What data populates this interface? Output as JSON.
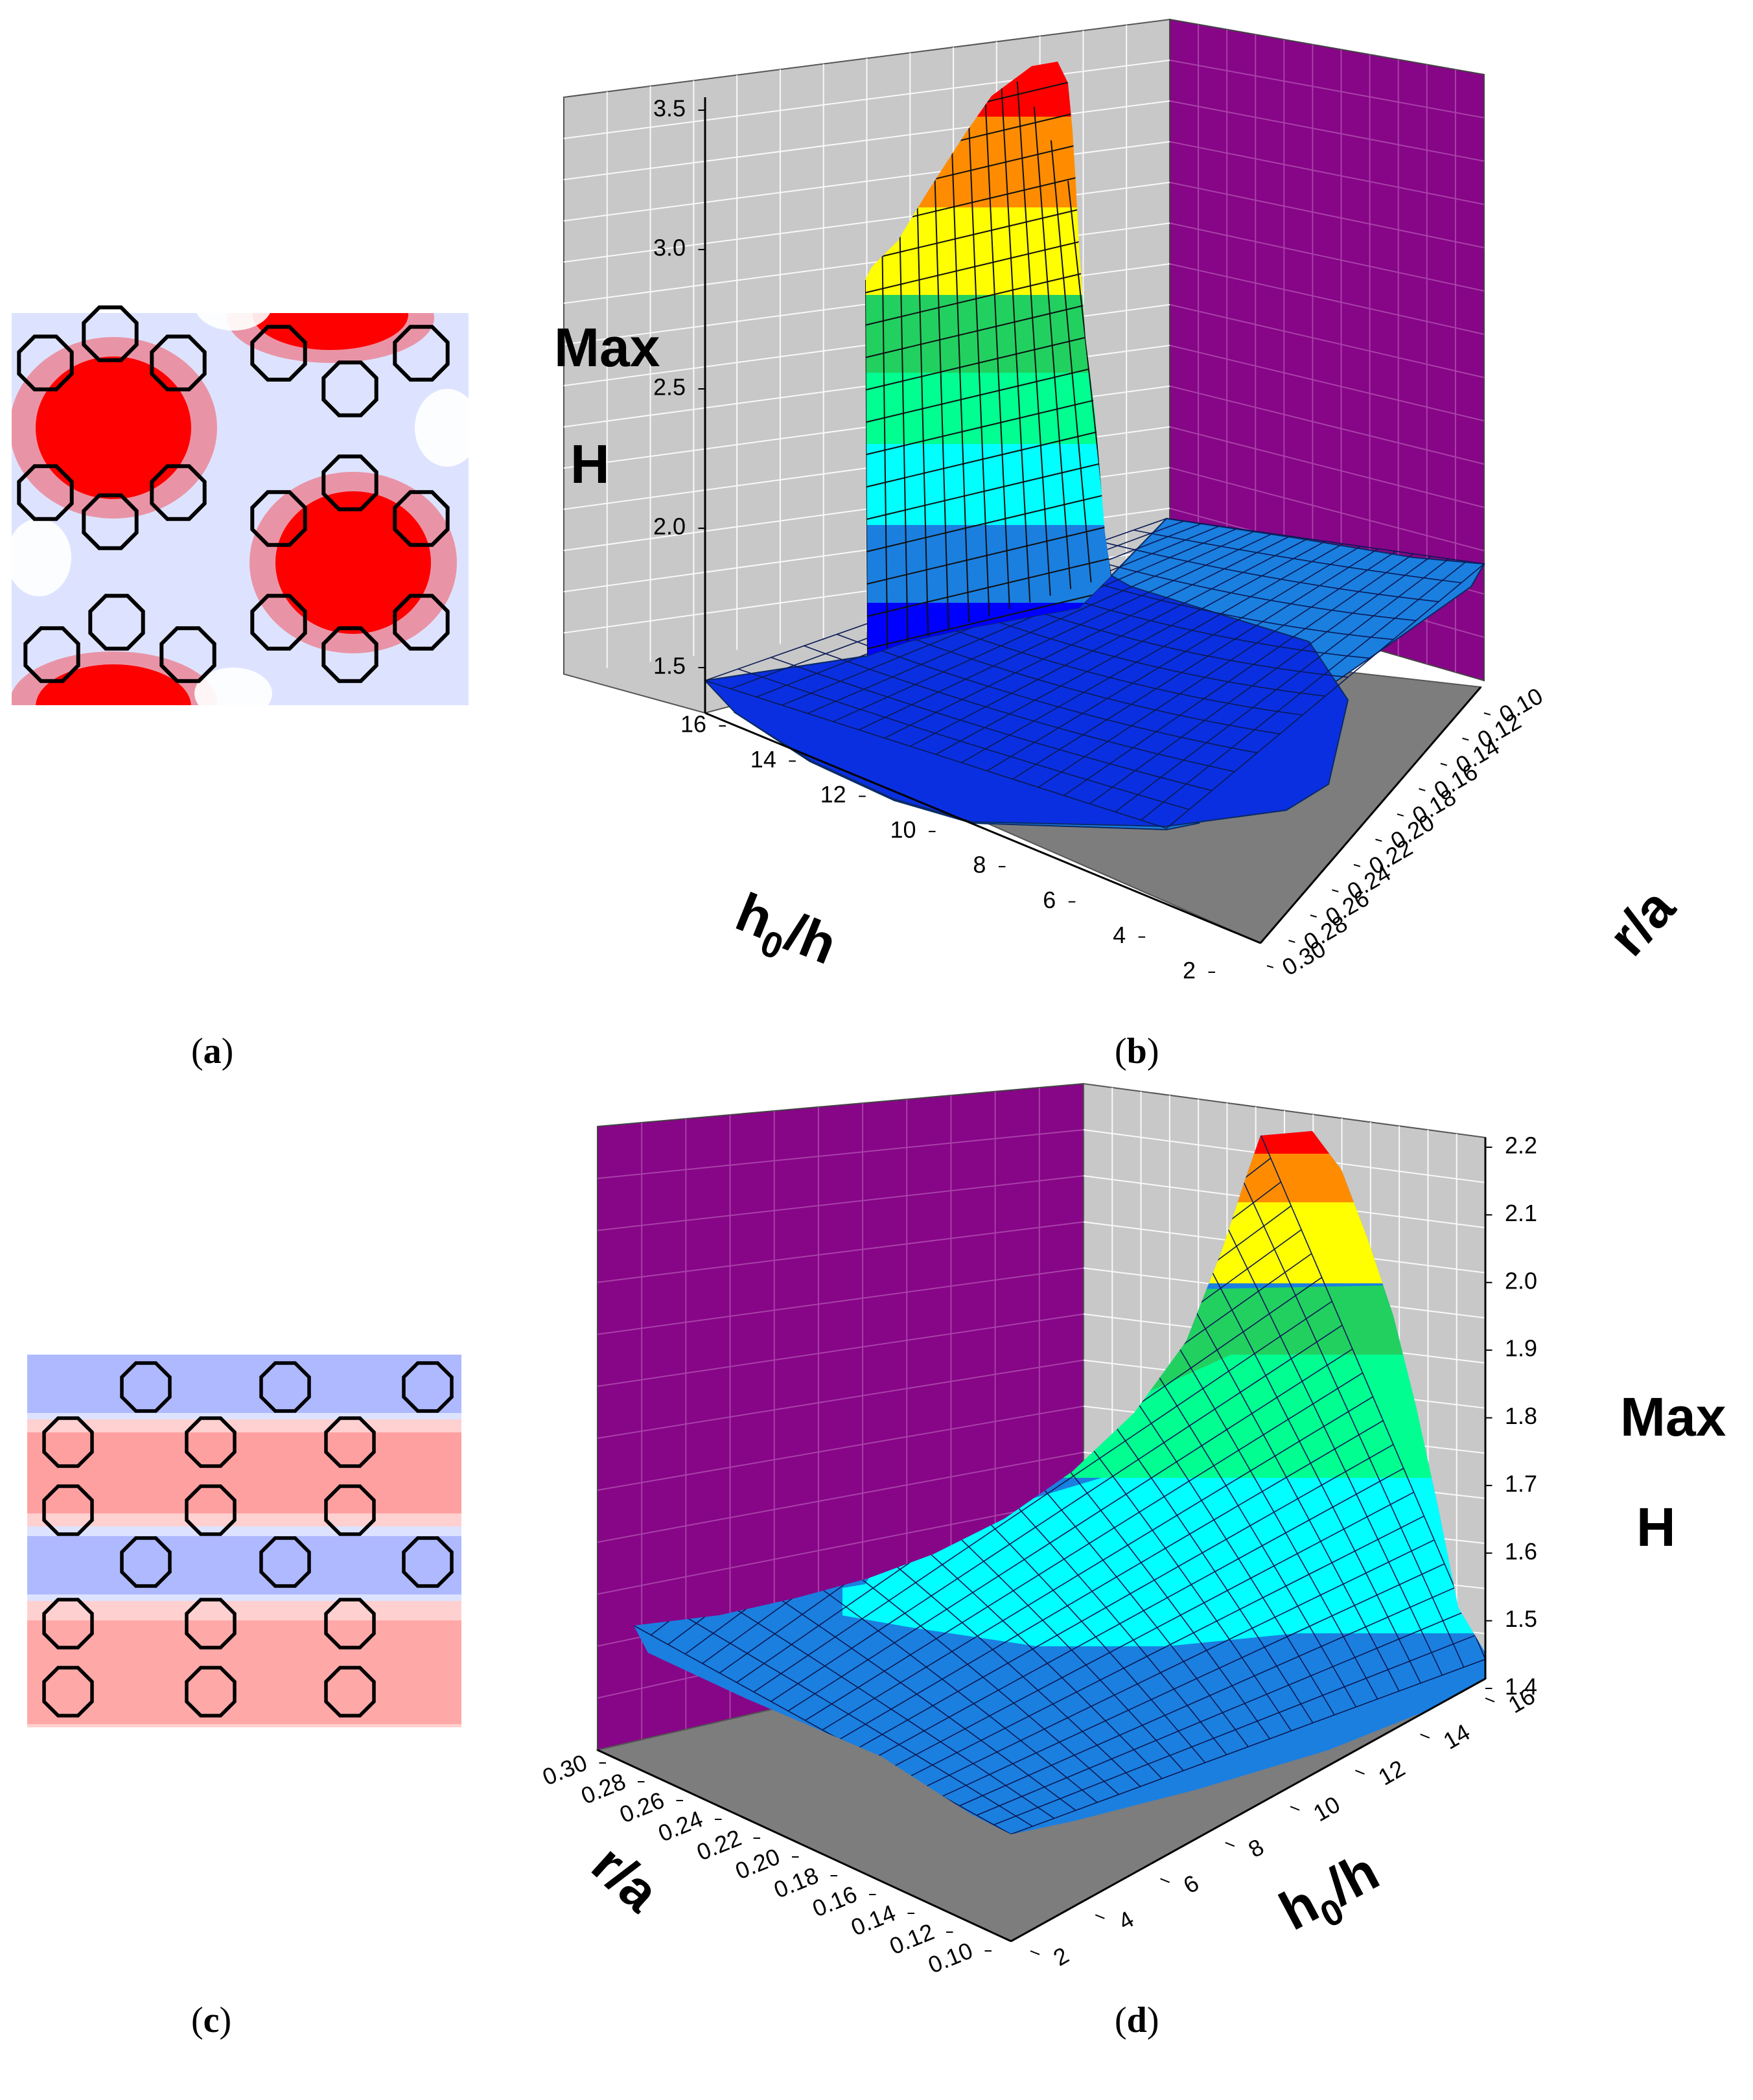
{
  "panel_labels": {
    "a": "a",
    "b": "b",
    "c": "c",
    "d": "d"
  },
  "colors": {
    "wall": "#870587",
    "back_wall": "#c8c8c8",
    "floor": "#7d7d7d",
    "field_red": "#ff0000",
    "field_blue": "#0000ff",
    "field_white": "#ffffff"
  },
  "icons": {
    "hole": "black-octagon-outline"
  },
  "chart_data": [
    {
      "panel": "b",
      "type": "surface3d",
      "zlabel_line1": "Max",
      "zlabel_line2": "H",
      "xlabel_main": "h",
      "xlabel_sub": "0",
      "xlabel_tail": "/h",
      "ylabel": "r/a",
      "x_ticks": [
        "2",
        "4",
        "6",
        "8",
        "10",
        "12",
        "14",
        "16"
      ],
      "y_ticks": [
        "0.10",
        "0.12",
        "0.14",
        "0.16",
        "0.18",
        "0.20",
        "0.22",
        "0.24",
        "0.26",
        "0.28",
        "0.30"
      ],
      "z_ticks": [
        "1.5",
        "2.0",
        "2.5",
        "3.0",
        "3.5"
      ],
      "x_range": [
        2,
        16
      ],
      "y_range": [
        0.1,
        0.3
      ],
      "z_range": [
        1.3,
        3.6
      ],
      "peak": {
        "h0_over_h": 14,
        "r_over_a": 0.29,
        "max_H": 3.6
      },
      "floor_value": 1.38,
      "far_edge_value": 1.9
    },
    {
      "panel": "d",
      "type": "surface3d",
      "zlabel_line1": "Max",
      "zlabel_line2": "H",
      "xlabel_main": "h",
      "xlabel_sub": "0",
      "xlabel_tail": "/h",
      "ylabel": "r/a",
      "x_ticks": [
        "2",
        "4",
        "6",
        "8",
        "10",
        "12",
        "14",
        "16"
      ],
      "y_ticks": [
        "0.10",
        "0.12",
        "0.14",
        "0.16",
        "0.18",
        "0.20",
        "0.22",
        "0.24",
        "0.26",
        "0.28",
        "0.30"
      ],
      "z_ticks": [
        "1.4",
        "1.5",
        "1.6",
        "1.7",
        "1.8",
        "1.9",
        "2.0",
        "2.1",
        "2.2"
      ],
      "x_range": [
        2,
        16
      ],
      "y_range": [
        0.1,
        0.3
      ],
      "z_range": [
        1.4,
        2.2
      ],
      "peak": {
        "h0_over_h": 14,
        "r_over_a": 0.19,
        "max_H": 2.2
      },
      "base_value": 1.55
    }
  ]
}
